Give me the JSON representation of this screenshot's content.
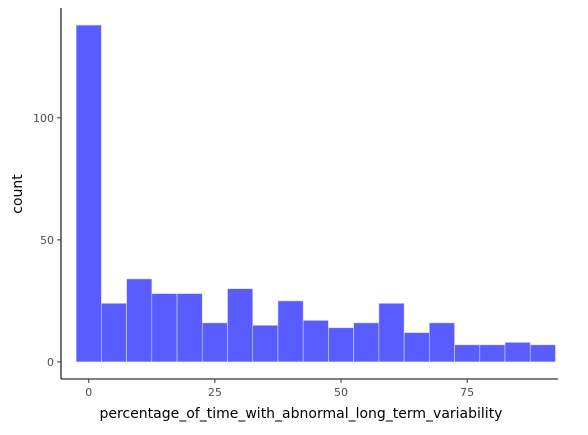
{
  "chart_data": {
    "type": "bar",
    "subtype": "histogram",
    "xlabel": "percentage_of_time_with_abnormal_long_term_variability",
    "ylabel": "count",
    "xlim": [
      -5.5,
      93
    ],
    "ylim": [
      -7,
      145
    ],
    "x_ticks": [
      0,
      25,
      50,
      75
    ],
    "y_ticks": [
      0,
      50,
      100
    ],
    "bin_width": 5,
    "bin_starts": [
      -2.5,
      2.5,
      7.5,
      12.5,
      17.5,
      22.5,
      27.5,
      32.5,
      37.5,
      42.5,
      47.5,
      52.5,
      57.5,
      62.5,
      67.5,
      72.5,
      77.5,
      82.5,
      87.5
    ],
    "values": [
      138,
      24,
      34,
      28,
      28,
      16,
      30,
      15,
      25,
      17,
      14,
      16,
      24,
      12,
      16,
      7,
      7,
      8,
      7
    ],
    "bar_color": "#595cff",
    "grid": false
  }
}
